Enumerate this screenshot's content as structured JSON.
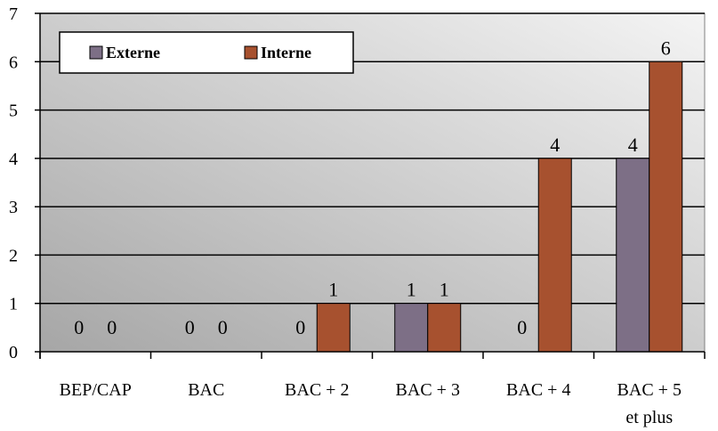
{
  "chart_data": {
    "type": "bar",
    "categories": [
      [
        "BEP/CAP"
      ],
      [
        "BAC"
      ],
      [
        "BAC + 2"
      ],
      [
        "BAC + 3"
      ],
      [
        "BAC + 4"
      ],
      [
        "BAC + 5",
        "et plus"
      ]
    ],
    "series": [
      {
        "name": "Externe",
        "values": [
          0,
          0,
          0,
          1,
          0,
          4
        ],
        "color": "#7d6f86"
      },
      {
        "name": "Interne",
        "values": [
          0,
          0,
          1,
          1,
          4,
          6
        ],
        "color": "#a7512f"
      }
    ],
    "ylim": [
      0,
      7
    ],
    "yticks": [
      "0",
      "1",
      "2",
      "3",
      "4",
      "5",
      "6",
      "7"
    ],
    "grid": true,
    "legend_position": "top-left",
    "plot_background": "gradient #aeaeae to #f2f2f2"
  }
}
